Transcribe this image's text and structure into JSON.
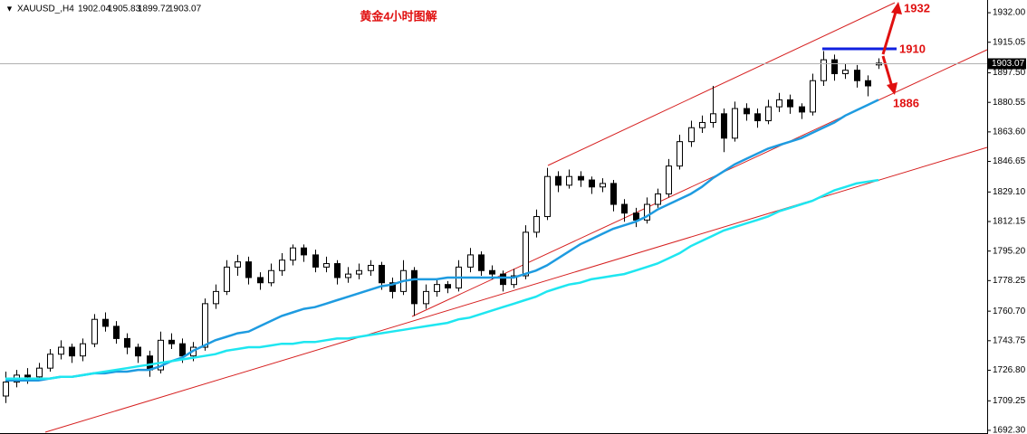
{
  "chart_data": {
    "type": "candlestick",
    "symbol": "XAUUSD_,H4",
    "title": "黄金4小时图解",
    "annotations": [
      "1932",
      "1910",
      "1886"
    ],
    "ylim": [
      1690.2,
      1939.3
    ],
    "yticks": [
      {
        "value": 1932.0,
        "label": "1932.00"
      },
      {
        "value": 1915.05,
        "label": "1915.05"
      },
      {
        "value": 1897.5,
        "label": "1897.50"
      },
      {
        "value": 1880.55,
        "label": "1880.55"
      },
      {
        "value": 1863.6,
        "label": "1863.60"
      },
      {
        "value": 1846.65,
        "label": "1846.65"
      },
      {
        "value": 1829.1,
        "label": "1829.10"
      },
      {
        "value": 1812.15,
        "label": "1812.15"
      },
      {
        "value": 1795.2,
        "label": "1795.20"
      },
      {
        "value": 1778.25,
        "label": "1778.25"
      },
      {
        "value": 1760.7,
        "label": "1760.70"
      },
      {
        "value": 1743.75,
        "label": "1743.75"
      },
      {
        "value": 1726.8,
        "label": "1726.80"
      },
      {
        "value": 1709.25,
        "label": "1709.25"
      },
      {
        "value": 1692.3,
        "label": "1692.30"
      }
    ],
    "up_color": "#ffffff",
    "down_color": "#000000",
    "open": [
      1712,
      1720,
      1724,
      1723,
      1728,
      1736,
      1740,
      1735,
      1742,
      1756,
      1752,
      1745,
      1740,
      1735,
      1727,
      1744,
      1742,
      1735,
      1740,
      1765,
      1772,
      1786,
      1789,
      1780,
      1777,
      1784,
      1790,
      1797,
      1793,
      1786,
      1788,
      1780,
      1782,
      1784,
      1787,
      1777,
      1772,
      1784,
      1765,
      1772,
      1776,
      1774,
      1786,
      1793,
      1784,
      1782,
      1776,
      1781,
      1806,
      1815,
      1838,
      1833,
      1838,
      1836,
      1832,
      1834,
      1822,
      1817,
      1813,
      1822,
      1828,
      1844,
      1858,
      1866,
      1869,
      1874,
      1860,
      1877,
      1874,
      1870,
      1878,
      1882,
      1878,
      1875,
      1893,
      1905,
      1897,
      1899,
      1893,
      1902.04
    ],
    "high": [
      1726,
      1727,
      1728,
      1731,
      1739,
      1744,
      1742,
      1745,
      1759,
      1760,
      1755,
      1748,
      1742,
      1738,
      1749,
      1748,
      1745,
      1743,
      1768,
      1776,
      1790,
      1793,
      1792,
      1783,
      1788,
      1794,
      1799,
      1799,
      1796,
      1792,
      1790,
      1786,
      1788,
      1790,
      1789,
      1780,
      1790,
      1786,
      1776,
      1779,
      1778,
      1790,
      1797,
      1795,
      1787,
      1784,
      1785,
      1810,
      1819,
      1843,
      1841,
      1842,
      1841,
      1838,
      1837,
      1836,
      1825,
      1820,
      1826,
      1831,
      1848,
      1862,
      1870,
      1873,
      1890,
      1877,
      1881,
      1880,
      1877,
      1882,
      1886,
      1885,
      1880,
      1897,
      1910,
      1908,
      1903,
      1902,
      1896,
      1905.83
    ],
    "low": [
      1708,
      1717,
      1719,
      1721,
      1726,
      1733,
      1731,
      1732,
      1740,
      1749,
      1742,
      1736,
      1731,
      1723,
      1725,
      1739,
      1731,
      1732,
      1738,
      1762,
      1770,
      1781,
      1776,
      1773,
      1775,
      1781,
      1787,
      1789,
      1783,
      1783,
      1776,
      1777,
      1779,
      1781,
      1773,
      1768,
      1770,
      1758,
      1762,
      1769,
      1771,
      1772,
      1783,
      1781,
      1779,
      1772,
      1774,
      1779,
      1803,
      1813,
      1829,
      1831,
      1832,
      1828,
      1829,
      1818,
      1812,
      1809,
      1811,
      1820,
      1826,
      1842,
      1855,
      1863,
      1866,
      1852,
      1858,
      1870,
      1866,
      1868,
      1875,
      1874,
      1871,
      1873,
      1890,
      1893,
      1894,
      1889,
      1884,
      1899.72
    ],
    "close": [
      1720,
      1724,
      1723,
      1728,
      1736,
      1740,
      1735,
      1742,
      1756,
      1752,
      1745,
      1740,
      1735,
      1727,
      1744,
      1742,
      1735,
      1740,
      1765,
      1772,
      1786,
      1789,
      1780,
      1777,
      1784,
      1790,
      1797,
      1793,
      1786,
      1788,
      1780,
      1782,
      1784,
      1787,
      1777,
      1772,
      1784,
      1765,
      1772,
      1776,
      1774,
      1786,
      1793,
      1784,
      1782,
      1776,
      1781,
      1806,
      1815,
      1838,
      1833,
      1838,
      1836,
      1832,
      1834,
      1822,
      1817,
      1813,
      1822,
      1828,
      1844,
      1858,
      1866,
      1869,
      1874,
      1860,
      1877,
      1874,
      1870,
      1878,
      1882,
      1878,
      1875,
      1893,
      1905,
      1897,
      1899,
      1893,
      1890,
      1903.07
    ],
    "ma_lines": [
      {
        "color": "#1e9be0",
        "values": [
          1721,
          1721,
          1721,
          1721,
          1722,
          1723,
          1723,
          1724,
          1725,
          1725,
          1726,
          1726,
          1727,
          1727,
          1729,
          1732,
          1734,
          1738,
          1741,
          1744,
          1746,
          1748,
          1749,
          1752,
          1755,
          1758,
          1760,
          1762,
          1763,
          1765,
          1767,
          1769,
          1771,
          1773,
          1775,
          1776,
          1778,
          1779,
          1779,
          1779,
          1780,
          1780,
          1780,
          1780,
          1780,
          1780,
          1780,
          1782,
          1784,
          1787,
          1791,
          1795,
          1799,
          1802,
          1805,
          1808,
          1810,
          1812,
          1815,
          1819,
          1822,
          1825,
          1828,
          1832,
          1837,
          1841,
          1845,
          1848,
          1851,
          1854,
          1856,
          1858,
          1860,
          1863,
          1866,
          1869,
          1873,
          1876,
          1879,
          1882
        ]
      },
      {
        "color": "#1ee6f0",
        "values": [
          1722,
          1722,
          1722,
          1722,
          1722,
          1723,
          1723,
          1724,
          1725,
          1726,
          1727,
          1728,
          1729,
          1730,
          1731,
          1732,
          1733,
          1734,
          1735,
          1736,
          1738,
          1739,
          1740,
          1740,
          1741,
          1742,
          1742,
          1743,
          1743,
          1744,
          1745,
          1745,
          1746,
          1747,
          1748,
          1749,
          1750,
          1751,
          1752,
          1753,
          1754,
          1756,
          1757,
          1759,
          1761,
          1763,
          1765,
          1767,
          1769,
          1772,
          1774,
          1776,
          1777,
          1779,
          1780,
          1781,
          1782,
          1784,
          1786,
          1788,
          1791,
          1794,
          1798,
          1801,
          1804,
          1807,
          1809,
          1811,
          1813,
          1815,
          1818,
          1820,
          1822,
          1824,
          1827,
          1830,
          1832,
          1834,
          1835,
          1836
        ]
      }
    ]
  }
}
